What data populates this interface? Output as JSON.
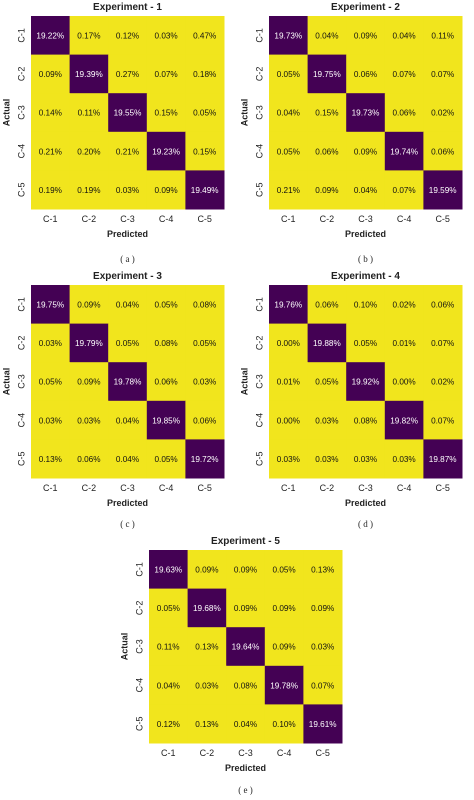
{
  "colors": {
    "diagonal": "#440154",
    "offdiagonal": "#f1e51d",
    "diagonal_text": "#ffffff",
    "offdiagonal_text": "#111111",
    "axis_text": "#222222"
  },
  "chart_data": [
    {
      "type": "heatmap",
      "title": "Experiment - 1",
      "xlabel": "Predicted",
      "ylabel": "Actual",
      "x_categories": [
        "C-1",
        "C-2",
        "C-3",
        "C-4",
        "C-5"
      ],
      "y_categories": [
        "C-1",
        "C-2",
        "C-3",
        "C-4",
        "C-5"
      ],
      "values": [
        [
          "19.22%",
          "0.17%",
          "0.12%",
          "0.03%",
          "0.47%"
        ],
        [
          "0.09%",
          "19.39%",
          "0.27%",
          "0.07%",
          "0.18%"
        ],
        [
          "0.14%",
          "0.11%",
          "19.55%",
          "0.15%",
          "0.05%"
        ],
        [
          "0.21%",
          "0.20%",
          "0.21%",
          "19.23%",
          "0.15%"
        ],
        [
          "0.19%",
          "0.19%",
          "0.03%",
          "0.09%",
          "19.49%"
        ]
      ],
      "caption": "( a )"
    },
    {
      "type": "heatmap",
      "title": "Experiment - 2",
      "xlabel": "Predicted",
      "ylabel": "Actual",
      "x_categories": [
        "C-1",
        "C-2",
        "C-3",
        "C-4",
        "C-5"
      ],
      "y_categories": [
        "C-1",
        "C-2",
        "C-3",
        "C-4",
        "C-5"
      ],
      "values": [
        [
          "19.73%",
          "0.04%",
          "0.09%",
          "0.04%",
          "0.11%"
        ],
        [
          "0.05%",
          "19.75%",
          "0.06%",
          "0.07%",
          "0.07%"
        ],
        [
          "0.04%",
          "0.15%",
          "19.73%",
          "0.06%",
          "0.02%"
        ],
        [
          "0.05%",
          "0.06%",
          "0.09%",
          "19.74%",
          "0.06%"
        ],
        [
          "0.21%",
          "0.09%",
          "0.04%",
          "0.07%",
          "19.59%"
        ]
      ],
      "caption": "( b )"
    },
    {
      "type": "heatmap",
      "title": "Experiment - 3",
      "xlabel": "Predicted",
      "ylabel": "Actual",
      "x_categories": [
        "C-1",
        "C-2",
        "C-3",
        "C-4",
        "C-5"
      ],
      "y_categories": [
        "C-1",
        "C-2",
        "C-3",
        "C-4",
        "C-5"
      ],
      "values": [
        [
          "19.75%",
          "0.09%",
          "0.04%",
          "0.05%",
          "0.08%"
        ],
        [
          "0.03%",
          "19.79%",
          "0.05%",
          "0.08%",
          "0.05%"
        ],
        [
          "0.05%",
          "0.09%",
          "19.78%",
          "0.06%",
          "0.03%"
        ],
        [
          "0.03%",
          "0.03%",
          "0.04%",
          "19.85%",
          "0.06%"
        ],
        [
          "0.13%",
          "0.06%",
          "0.04%",
          "0.05%",
          "19.72%"
        ]
      ],
      "caption": "( c )"
    },
    {
      "type": "heatmap",
      "title": "Experiment - 4",
      "xlabel": "Predicted",
      "ylabel": "Actual",
      "x_categories": [
        "C-1",
        "C-2",
        "C-3",
        "C-4",
        "C-5"
      ],
      "y_categories": [
        "C-1",
        "C-2",
        "C-3",
        "C-4",
        "C-5"
      ],
      "values": [
        [
          "19.76%",
          "0.06%",
          "0.10%",
          "0.02%",
          "0.06%"
        ],
        [
          "0.00%",
          "19.88%",
          "0.05%",
          "0.01%",
          "0.07%"
        ],
        [
          "0.01%",
          "0.05%",
          "19.92%",
          "0.00%",
          "0.02%"
        ],
        [
          "0.00%",
          "0.03%",
          "0.08%",
          "19.82%",
          "0.07%"
        ],
        [
          "0.03%",
          "0.03%",
          "0.03%",
          "0.03%",
          "19.87%"
        ]
      ],
      "caption": "( d )"
    },
    {
      "type": "heatmap",
      "title": "Experiment - 5",
      "xlabel": "Predicted",
      "ylabel": "Actual",
      "x_categories": [
        "C-1",
        "C-2",
        "C-3",
        "C-4",
        "C-5"
      ],
      "y_categories": [
        "C-1",
        "C-2",
        "C-3",
        "C-4",
        "C-5"
      ],
      "values": [
        [
          "19.63%",
          "0.09%",
          "0.09%",
          "0.05%",
          "0.13%"
        ],
        [
          "0.05%",
          "19.68%",
          "0.09%",
          "0.09%",
          "0.09%"
        ],
        [
          "0.11%",
          "0.13%",
          "19.64%",
          "0.09%",
          "0.03%"
        ],
        [
          "0.04%",
          "0.03%",
          "0.08%",
          "19.78%",
          "0.07%"
        ],
        [
          "0.12%",
          "0.13%",
          "0.04%",
          "0.10%",
          "19.61%"
        ]
      ],
      "caption": "( e )"
    }
  ]
}
